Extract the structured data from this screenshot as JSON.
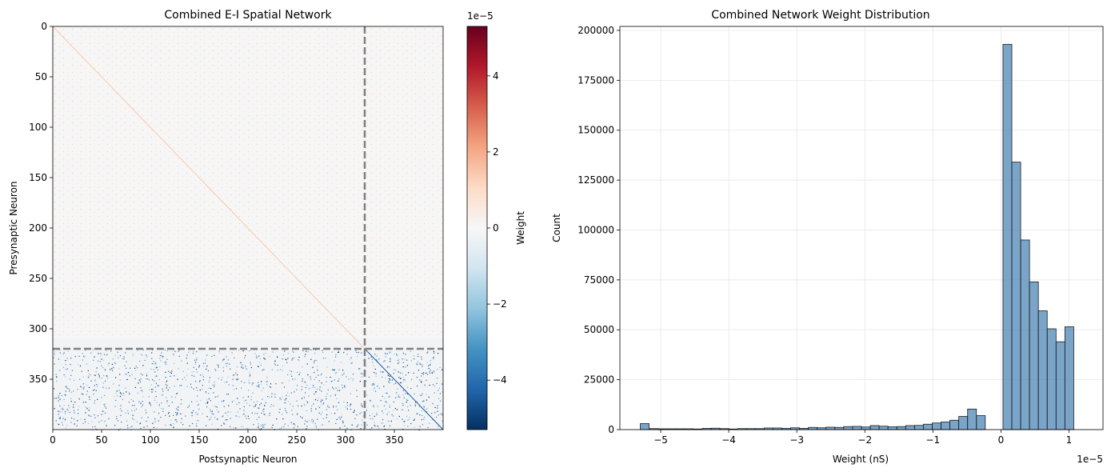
{
  "chart_data": [
    {
      "type": "heatmap",
      "title": "Combined E-I Spatial Network",
      "xlabel": "Postsynaptic Neuron",
      "ylabel": "Presynaptic Neuron",
      "n_neurons": 400,
      "n_excitatory": 320,
      "x_ticks": [
        0,
        50,
        100,
        150,
        200,
        250,
        300,
        350
      ],
      "y_ticks": [
        0,
        50,
        100,
        150,
        200,
        250,
        300,
        350
      ],
      "boundary_lines": [
        320
      ],
      "colorbar": {
        "label": "Weight",
        "offset_text": "1e−5",
        "range": [
          -5.3,
          5.3
        ],
        "ticks": [
          -4,
          -2,
          0,
          2,
          4
        ],
        "tick_labels": [
          "−4",
          "−2",
          "0",
          "2",
          "4"
        ],
        "colormap": "RdBu_r"
      }
    },
    {
      "type": "bar",
      "title": "Combined Network Weight Distribution",
      "xlabel": "Weight (nS)",
      "ylabel": "Count",
      "x_offset_text": "1e−5",
      "xlim": [
        -5.6,
        1.5
      ],
      "ylim": [
        0,
        202000
      ],
      "x_ticks": [
        -5,
        -4,
        -3,
        -2,
        -1,
        0,
        1
      ],
      "x_tick_labels": [
        "−5",
        "−4",
        "−3",
        "−2",
        "−1",
        "0",
        "1"
      ],
      "y_ticks": [
        0,
        25000,
        50000,
        75000,
        100000,
        125000,
        150000,
        175000,
        200000
      ],
      "y_tick_labels": [
        "0",
        "25000",
        "50000",
        "75000",
        "100000",
        "125000",
        "150000",
        "175000",
        "200000"
      ],
      "grid": true,
      "bar_color": "#4682b4",
      "bin_edges": [
        -5.3,
        -5.17,
        -5.04,
        -4.91,
        -4.78,
        -4.65,
        -4.52,
        -4.39,
        -4.26,
        -4.13,
        -4.0,
        -3.87,
        -3.74,
        -3.61,
        -3.48,
        -3.35,
        -3.22,
        -3.09,
        -2.96,
        -2.83,
        -2.7,
        -2.57,
        -2.44,
        -2.31,
        -2.18,
        -2.05,
        -1.92,
        -1.79,
        -1.66,
        -1.53,
        -1.4,
        -1.27,
        -1.14,
        -1.01,
        -0.88,
        -0.75,
        -0.62,
        -0.49,
        -0.36,
        -0.23,
        -0.1,
        0.03,
        0.16,
        0.29,
        0.42,
        0.55,
        0.68,
        0.81,
        0.94,
        1.07,
        1.2
      ],
      "counts": [
        3000,
        500,
        400,
        400,
        400,
        400,
        300,
        600,
        700,
        500,
        300,
        500,
        500,
        500,
        800,
        800,
        600,
        900,
        600,
        1100,
        900,
        1200,
        1100,
        1500,
        1600,
        1300,
        2000,
        1700,
        1400,
        1500,
        2000,
        2100,
        2700,
        3300,
        3800,
        4700,
        6600,
        10300,
        7000,
        0,
        0,
        193000,
        134000,
        95000,
        74000,
        59500,
        50500,
        44000,
        51500,
        0
      ]
    }
  ]
}
